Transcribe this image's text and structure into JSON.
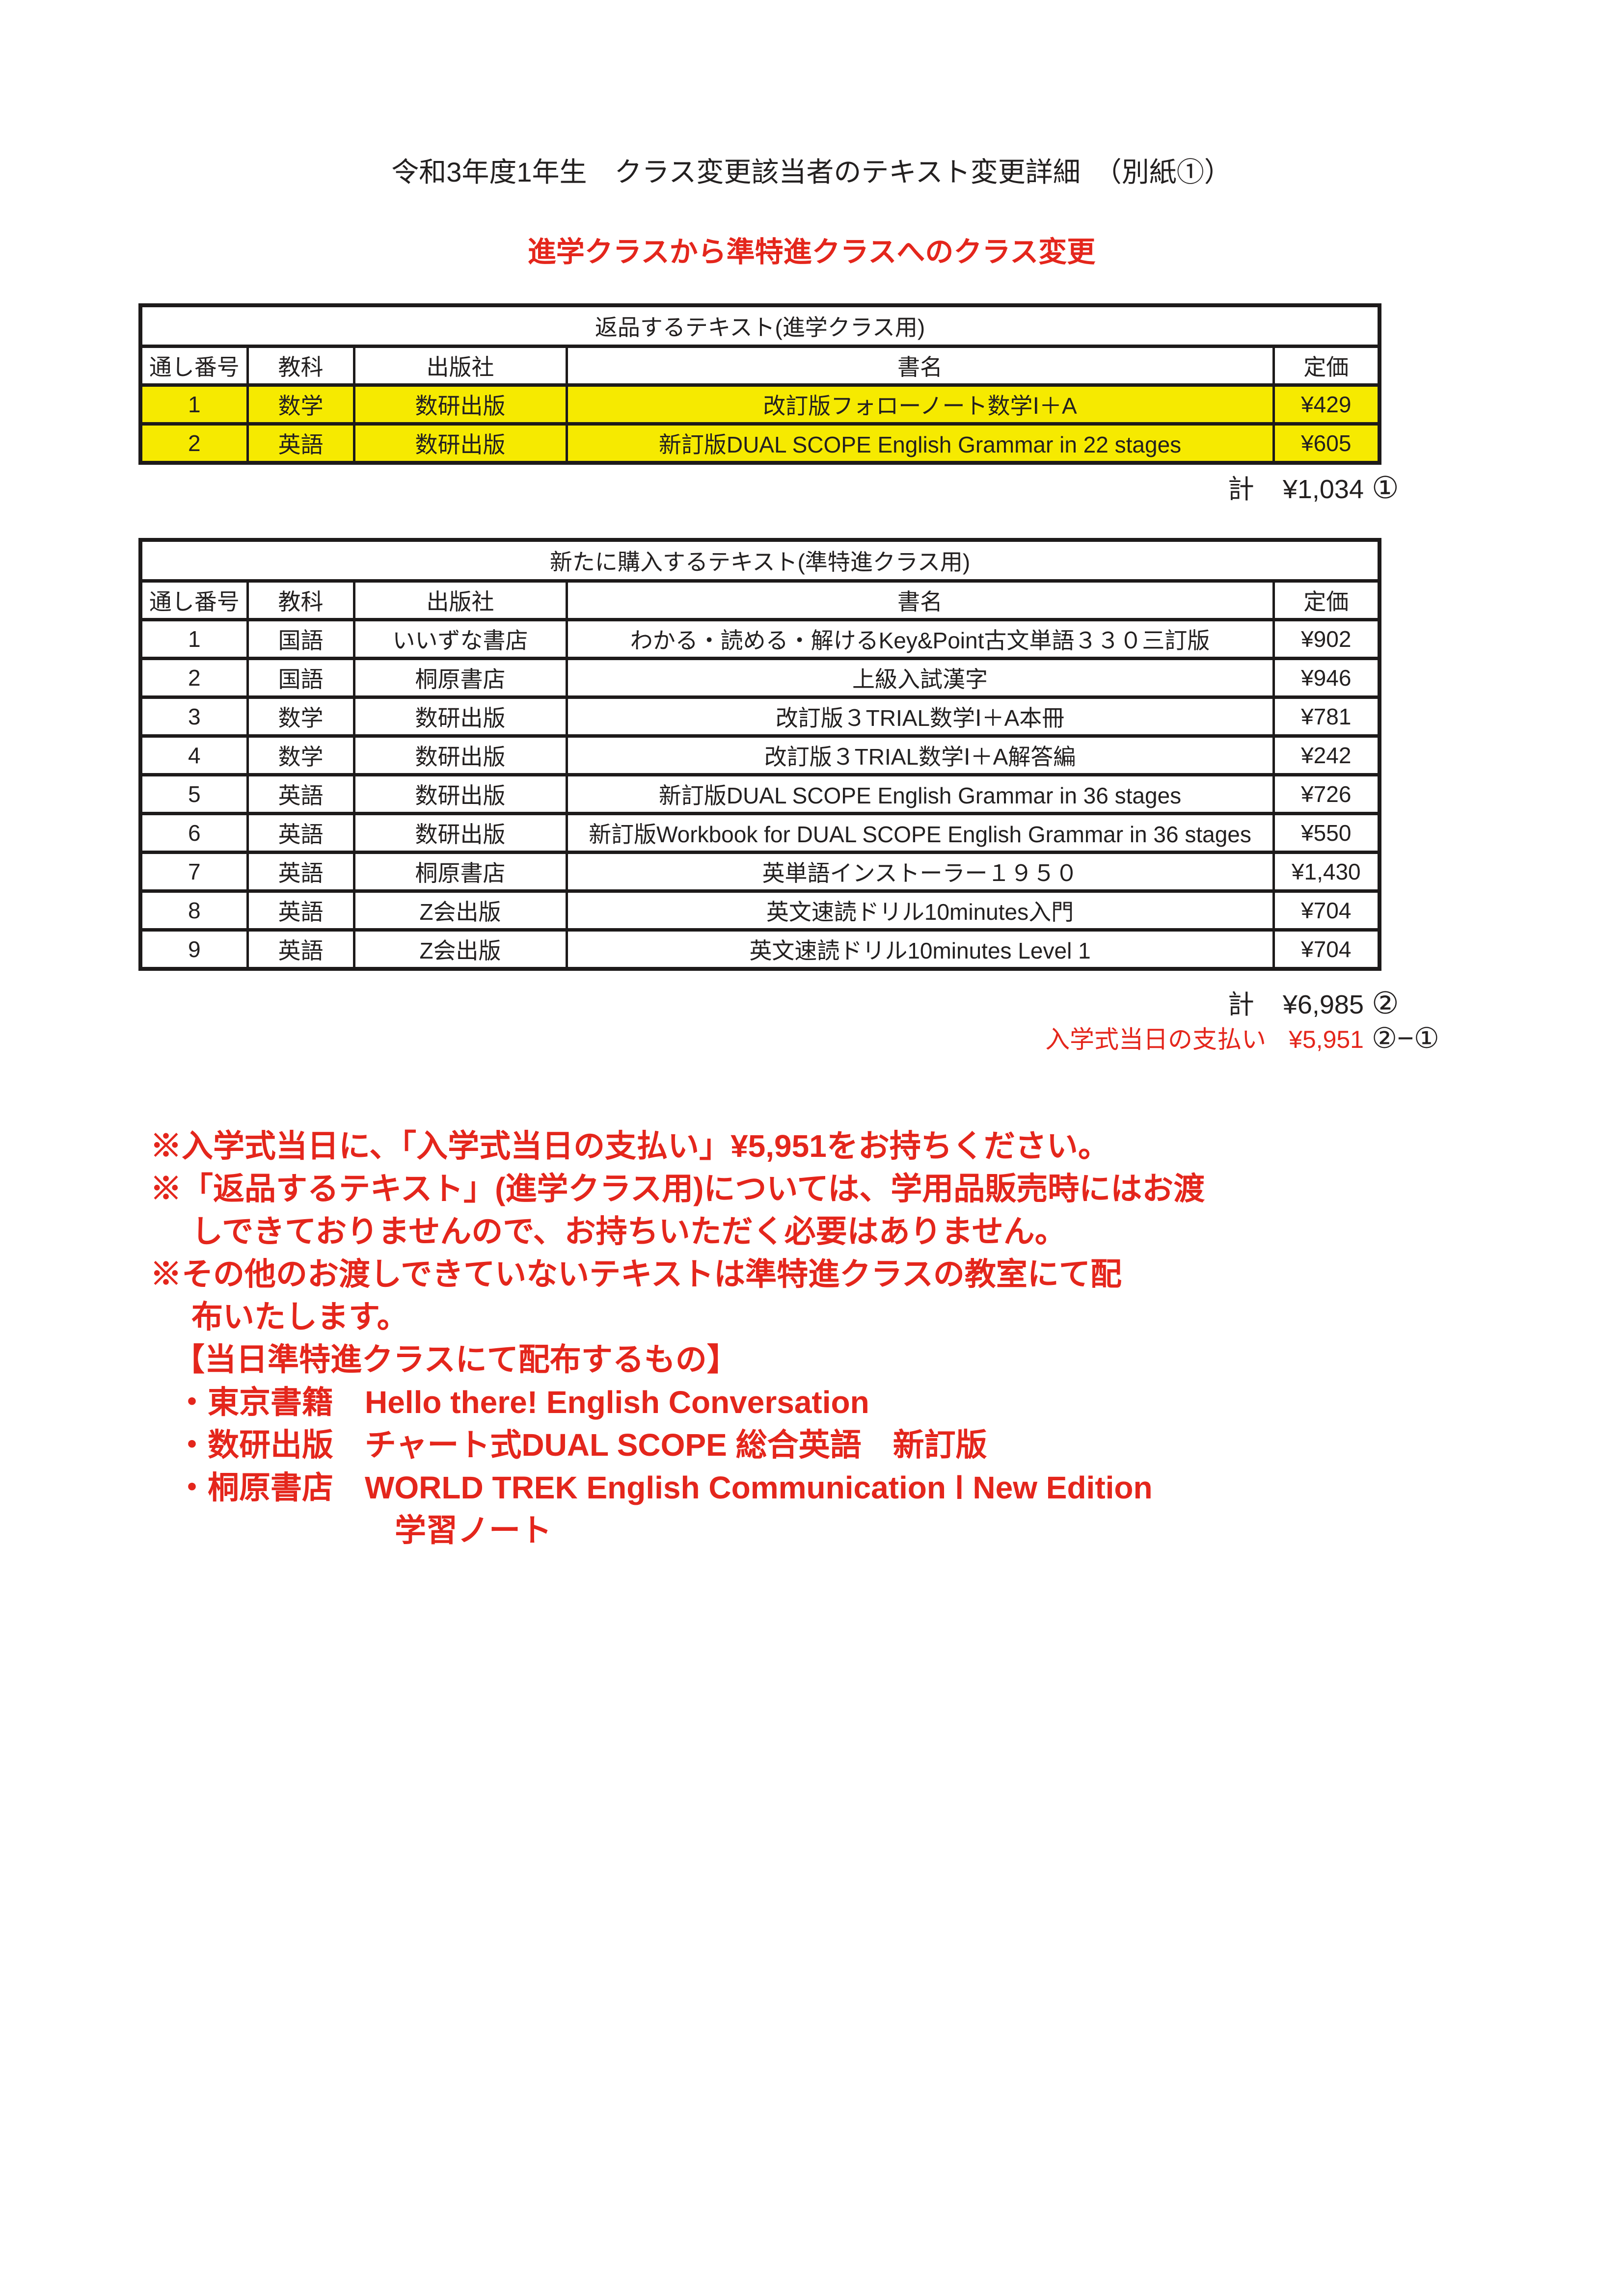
{
  "doc": {
    "title": "令和3年度1年生　クラス変更該当者のテキスト変更詳細　（別紙①）",
    "subtitle": "進学クラスから準特進クラスへのクラス変更"
  },
  "tables": [
    {
      "title": "返品するテキスト(進学クラス用)",
      "headers": [
        "通し番号",
        "教科",
        "出版社",
        "書名",
        "定価"
      ],
      "rows": [
        {
          "no": "1",
          "subject": "数学",
          "publisher": "数研出版",
          "title": "改訂版フォローノート数学Ⅰ＋A",
          "price": "¥429",
          "highlight": true
        },
        {
          "no": "2",
          "subject": "英語",
          "publisher": "数研出版",
          "title": "新訂版DUAL SCOPE English Grammar in 22 stages",
          "price": "¥605",
          "highlight": true
        }
      ],
      "total": {
        "label": "計",
        "value": "¥1,034",
        "mark": "①"
      }
    },
    {
      "title": "新たに購入するテキスト(準特進クラス用)",
      "headers": [
        "通し番号",
        "教科",
        "出版社",
        "書名",
        "定価"
      ],
      "rows": [
        {
          "no": "1",
          "subject": "国語",
          "publisher": "いいずな書店",
          "title": "わかる・読める・解けるKey&Point古文単語３３０三訂版",
          "price": "¥902",
          "highlight": false
        },
        {
          "no": "2",
          "subject": "国語",
          "publisher": "桐原書店",
          "title": "上級入試漢字",
          "price": "¥946",
          "highlight": false
        },
        {
          "no": "3",
          "subject": "数学",
          "publisher": "数研出版",
          "title": "改訂版３TRIAL数学Ⅰ＋A本冊",
          "price": "¥781",
          "highlight": false
        },
        {
          "no": "4",
          "subject": "数学",
          "publisher": "数研出版",
          "title": "改訂版３TRIAL数学Ⅰ＋A解答編",
          "price": "¥242",
          "highlight": false
        },
        {
          "no": "5",
          "subject": "英語",
          "publisher": "数研出版",
          "title": "新訂版DUAL SCOPE English Grammar in 36 stages",
          "price": "¥726",
          "highlight": false
        },
        {
          "no": "6",
          "subject": "英語",
          "publisher": "数研出版",
          "title": "新訂版Workbook for DUAL SCOPE English Grammar in 36 stages",
          "price": "¥550",
          "highlight": false
        },
        {
          "no": "7",
          "subject": "英語",
          "publisher": "桐原書店",
          "title": "英単語インストーラー１９５０",
          "price": "¥1,430",
          "highlight": false
        },
        {
          "no": "8",
          "subject": "英語",
          "publisher": "Z会出版",
          "title": "英文速読ドリル10minutes入門",
          "price": "¥704",
          "highlight": false
        },
        {
          "no": "9",
          "subject": "英語",
          "publisher": "Z会出版",
          "title": "英文速読ドリル10minutes Level 1",
          "price": "¥704",
          "highlight": false
        }
      ],
      "total": {
        "label": "計",
        "value": "¥6,985",
        "mark": "②"
      }
    }
  ],
  "payment": {
    "label": "入学式当日の支払い",
    "value": "¥5,951",
    "mark": "②−①"
  },
  "notes": [
    {
      "text": "※入学式当日に、「入学式当日の支払い」¥5,951をお持ちください。",
      "style": "main"
    },
    {
      "text": "※「返品するテキスト」(進学クラス用)については、学用品販売時にはお渡",
      "style": "main"
    },
    {
      "text": "しできておりませんので、お持ちいただく必要はありません。",
      "style": "wrap"
    },
    {
      "text": "※その他のお渡しできていないテキストは準特進クラスの教室にて配",
      "style": "main"
    },
    {
      "text": "布いたします。",
      "style": "wrap"
    },
    {
      "text": "【当日準特進クラスにて配布するもの】",
      "style": "bracket"
    },
    {
      "text": "・東京書籍　Hello there! English Conversation",
      "style": "bullet"
    },
    {
      "text": "・数研出版　チャート式DUAL SCOPE 総合英語　新訂版",
      "style": "bullet"
    },
    {
      "text": "・桐原書店　WORLD TREK English Communication Ⅰ New Edition",
      "style": "bullet"
    },
    {
      "text": "学習ノート",
      "style": "cont"
    }
  ],
  "colors": {
    "accent_red": "#e4261c",
    "highlight_yellow": "#f6ea00",
    "line_black": "#1d1a1a"
  }
}
